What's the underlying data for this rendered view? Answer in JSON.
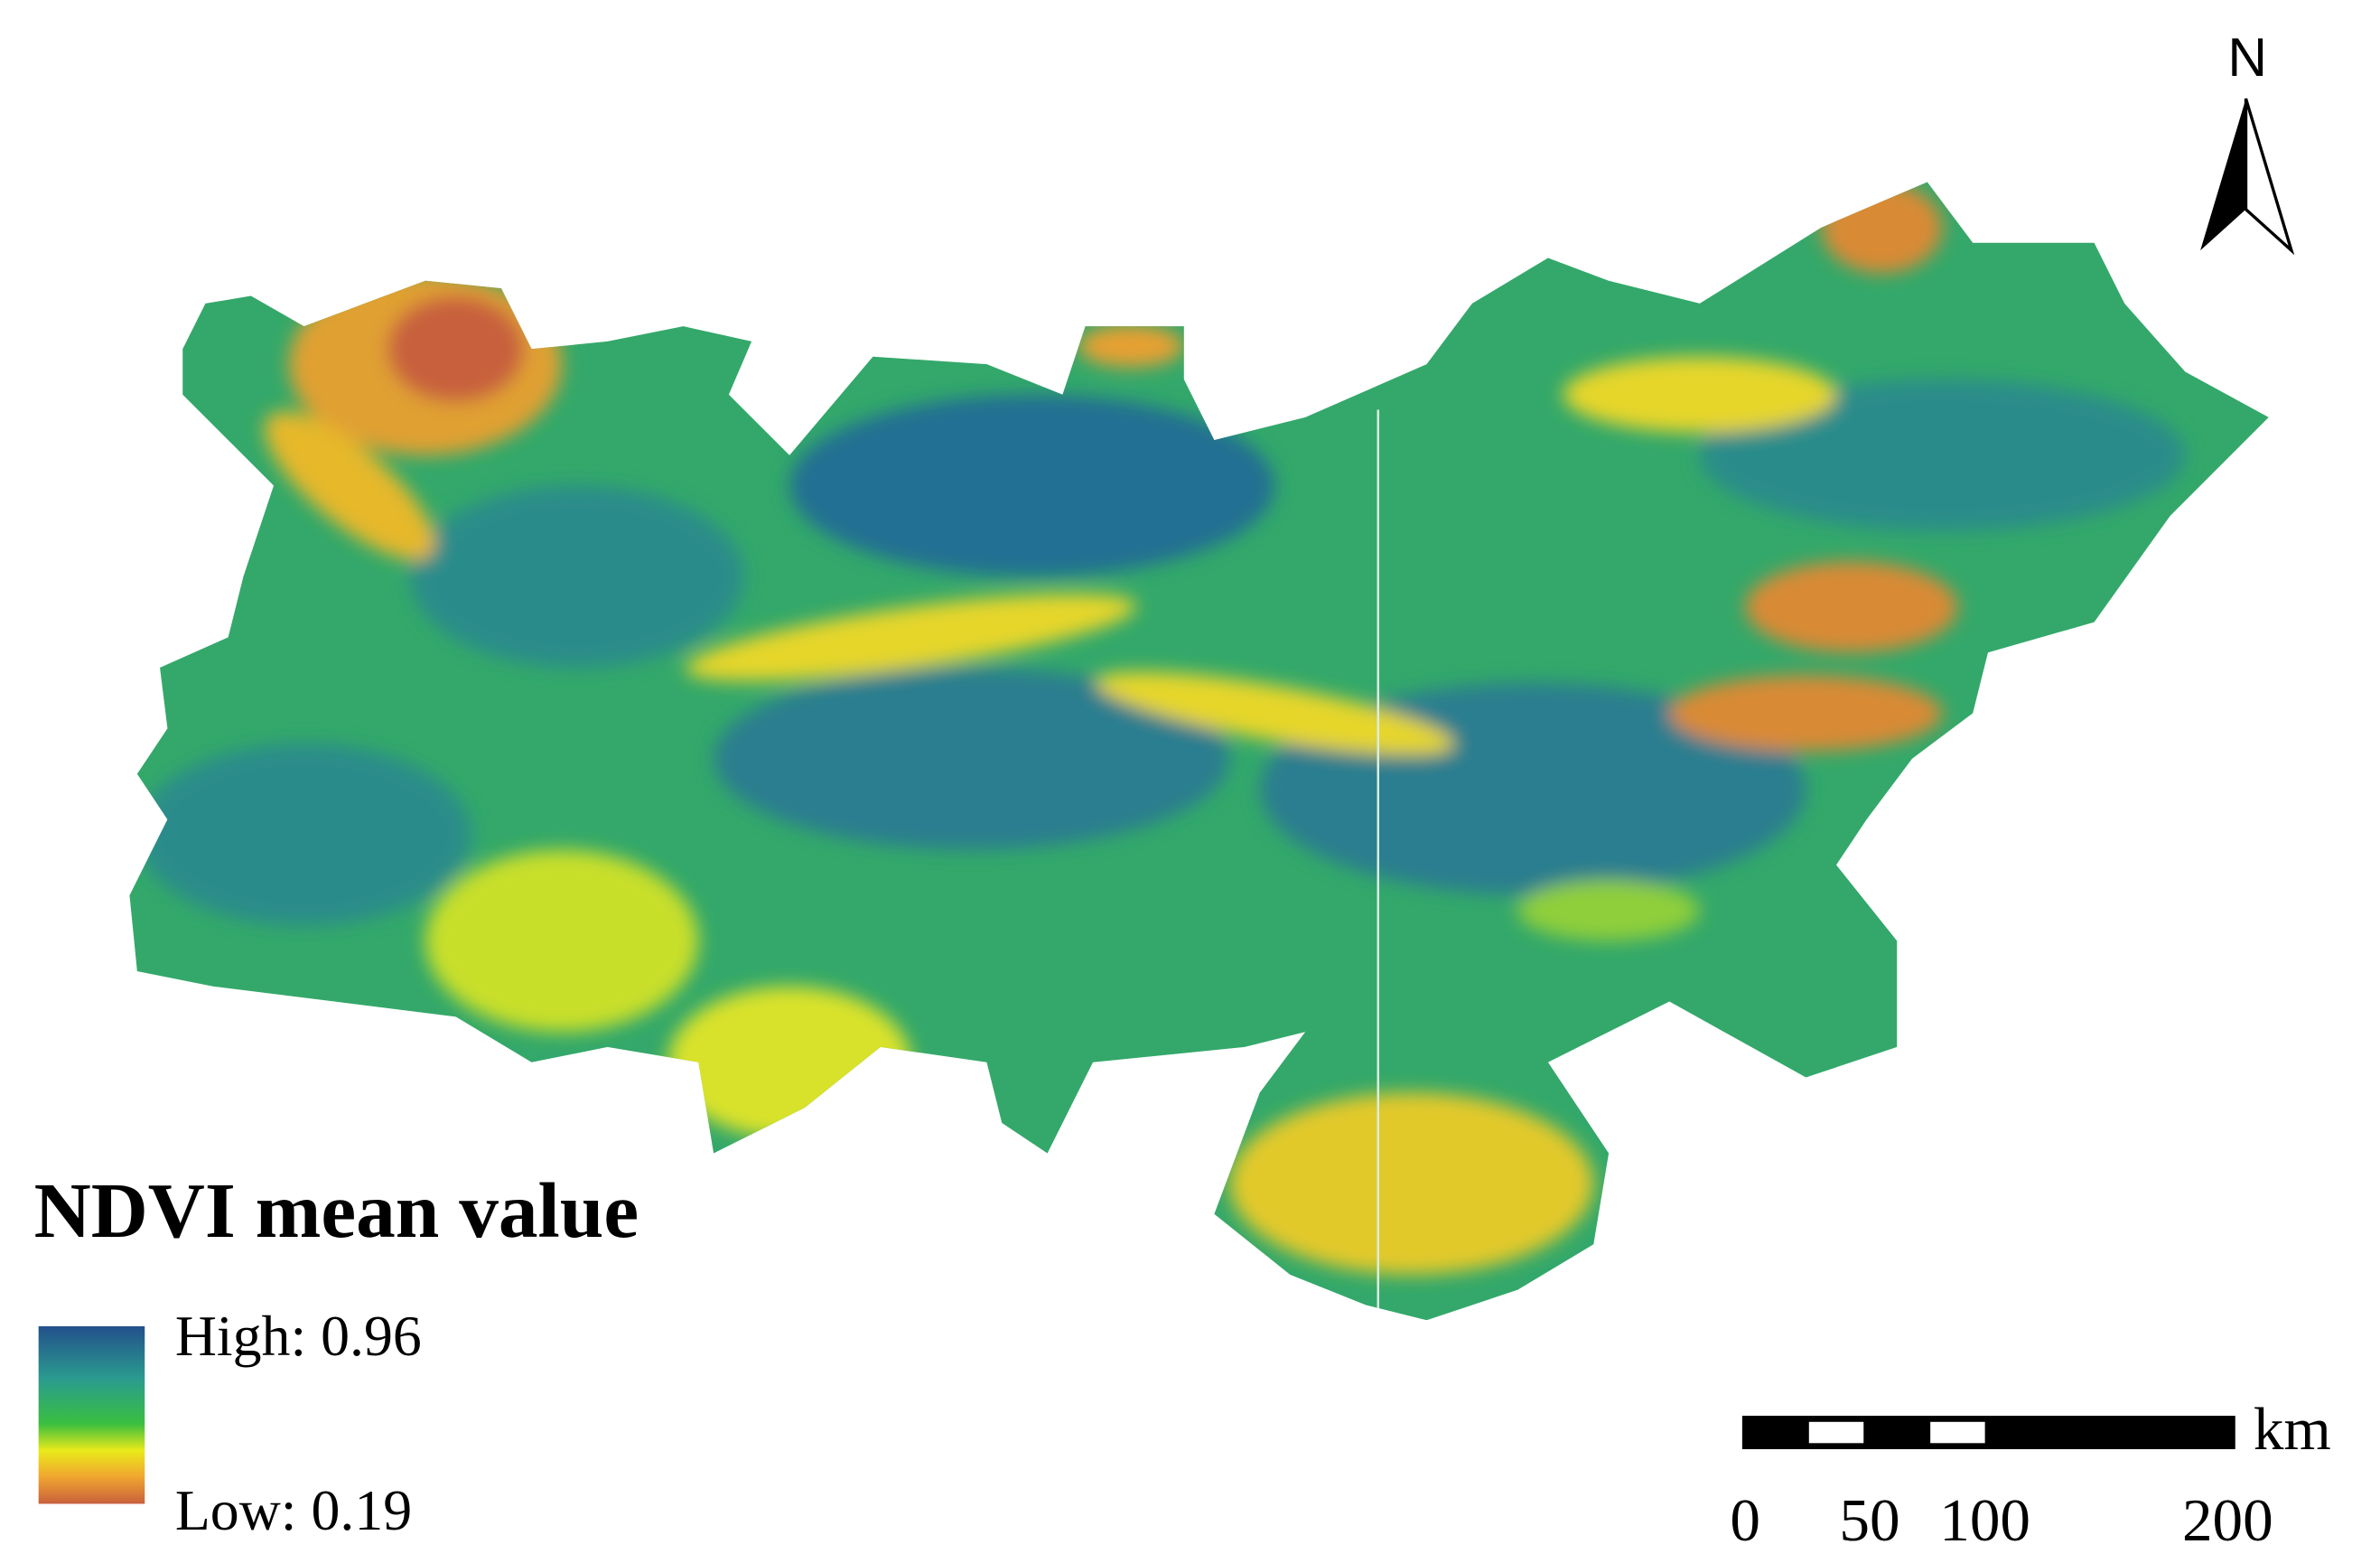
{
  "legend": {
    "title": "NDVI mean value",
    "high": "High: 0.96",
    "low": "Low: 0.19"
  },
  "north_arrow": {
    "label": "N"
  },
  "scale_bar": {
    "unit": "km",
    "ticks": [
      0,
      50,
      100,
      200
    ]
  }
}
